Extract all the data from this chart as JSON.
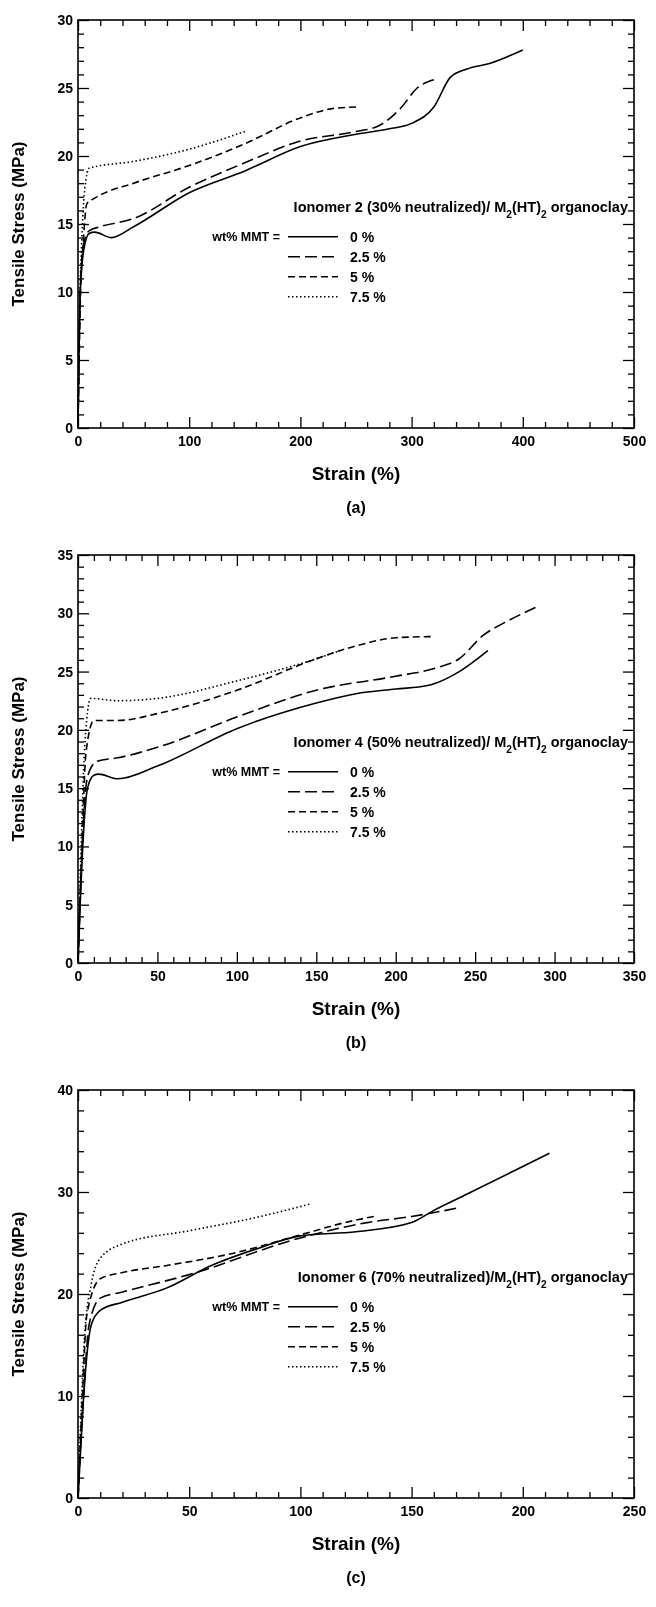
{
  "chart_data": [
    {
      "type": "line",
      "title": "(a)",
      "xlabel": "Strain (%)",
      "ylabel": "Tensile Stress (MPa)",
      "legend_title": "Ionomer 2 (30% neutralized)/ M$_{2}$(HT)$_{2}$ organoclay",
      "annotations": [
        "wt% MMT ="
      ],
      "legend": "center right",
      "xlim": [
        0,
        500
      ],
      "ylim": [
        0,
        30
      ],
      "xticks": [
        0,
        {
          "value": 20,
          "label": null
        },
        {
          "value": 40,
          "label": null
        },
        {
          "value": 60,
          "label": null
        },
        {
          "value": 80,
          "label": null
        },
        100,
        {
          "value": 120,
          "label": null
        },
        {
          "value": 140,
          "label": null
        },
        {
          "value": 160,
          "label": null
        },
        {
          "value": 180,
          "label": null
        },
        200,
        {
          "value": 220,
          "label": null
        },
        {
          "value": 240,
          "label": null
        },
        {
          "value": 260,
          "label": null
        },
        {
          "value": 280,
          "label": null
        },
        300,
        {
          "value": 320,
          "label": null
        },
        {
          "value": 340,
          "label": null
        },
        {
          "value": 360,
          "label": null
        },
        {
          "value": 380,
          "label": null
        },
        400,
        {
          "value": 420,
          "label": null
        },
        {
          "value": 440,
          "label": null
        },
        {
          "value": 460,
          "label": null
        },
        {
          "value": 480,
          "label": null
        },
        500
      ],
      "yticks": [
        0,
        {
          "value": 1,
          "label": null
        },
        {
          "value": 2,
          "label": null
        },
        {
          "value": 3,
          "label": null
        },
        {
          "value": 4,
          "label": null
        },
        5,
        {
          "value": 6,
          "label": null
        },
        {
          "value": 7,
          "label": null
        },
        {
          "value": 8,
          "label": null
        },
        {
          "value": 9,
          "label": null
        },
        10,
        {
          "value": 11,
          "label": null
        },
        {
          "value": 12,
          "label": null
        },
        {
          "value": 13,
          "label": null
        },
        {
          "value": 14,
          "label": null
        },
        15,
        {
          "value": 16,
          "label": null
        },
        {
          "value": 17,
          "label": null
        },
        {
          "value": 18,
          "label": null
        },
        {
          "value": 19,
          "label": null
        },
        20,
        {
          "value": 21,
          "label": null
        },
        {
          "value": 22,
          "label": null
        },
        {
          "value": 23,
          "label": null
        },
        {
          "value": 24,
          "label": null
        },
        25,
        {
          "value": 26,
          "label": null
        },
        {
          "value": 27,
          "label": null
        },
        {
          "value": 28,
          "label": null
        },
        {
          "value": 29,
          "label": null
        },
        30
      ],
      "series": [
        {
          "name": "0 %",
          "color": "#000000",
          "line_style": "solid",
          "x": [
            0,
            2,
            5,
            10,
            15,
            30,
            50,
            100,
            150,
            200,
            250,
            280,
            300,
            320,
            335,
            350,
            370,
            400
          ],
          "values": [
            0,
            10,
            13,
            14.3,
            14.4,
            14,
            14.8,
            17.3,
            18.9,
            20.7,
            21.6,
            22,
            22.4,
            23.6,
            25.8,
            26.4,
            26.8,
            27.8
          ]
        },
        {
          "name": "2.5 %",
          "color": "#000000",
          "line_style": "dashed",
          "x": [
            0,
            2,
            5,
            10,
            20,
            50,
            100,
            150,
            200,
            250,
            270,
            290,
            305,
            320
          ],
          "values": [
            0,
            10,
            13.5,
            14.5,
            14.8,
            15.4,
            17.7,
            19.5,
            21.1,
            21.8,
            22.2,
            23.5,
            25,
            25.6
          ]
        },
        {
          "name": "5 %",
          "color": "#000000",
          "line_style": "dashed",
          "x": [
            0,
            2,
            5,
            8,
            15,
            50,
            100,
            150,
            200,
            230,
            250
          ],
          "values": [
            0,
            9,
            14,
            16.5,
            16.9,
            18,
            19.3,
            20.9,
            22.8,
            23.5,
            23.6
          ]
        },
        {
          "name": "7.5 %",
          "color": "#000000",
          "line_style": "dotted",
          "x": [
            0,
            1.5,
            3,
            6,
            10,
            50,
            100,
            150
          ],
          "values": [
            0,
            9,
            13,
            17.5,
            19.1,
            19.6,
            20.5,
            21.8
          ]
        }
      ]
    },
    {
      "type": "line",
      "title": "(b)",
      "xlabel": "Strain (%)",
      "ylabel": "Tensile Stress (MPa)",
      "legend_title": "Ionomer 4 (50% neutralized)/ M$_{2}$(HT)$_{2}$ organoclay",
      "annotations": [
        "wt% MMT ="
      ],
      "legend": "center right",
      "xlim": [
        0,
        350
      ],
      "ylim": [
        0,
        35
      ],
      "xticks": [
        0,
        {
          "value": 10,
          "label": null
        },
        {
          "value": 20,
          "label": null
        },
        {
          "value": 30,
          "label": null
        },
        {
          "value": 40,
          "label": null
        },
        50,
        {
          "value": 60,
          "label": null
        },
        {
          "value": 70,
          "label": null
        },
        {
          "value": 80,
          "label": null
        },
        {
          "value": 90,
          "label": null
        },
        100,
        {
          "value": 110,
          "label": null
        },
        {
          "value": 120,
          "label": null
        },
        {
          "value": 130,
          "label": null
        },
        {
          "value": 140,
          "label": null
        },
        150,
        {
          "value": 160,
          "label": null
        },
        {
          "value": 170,
          "label": null
        },
        {
          "value": 180,
          "label": null
        },
        {
          "value": 190,
          "label": null
        },
        200,
        {
          "value": 210,
          "label": null
        },
        {
          "value": 220,
          "label": null
        },
        {
          "value": 230,
          "label": null
        },
        {
          "value": 240,
          "label": null
        },
        250,
        {
          "value": 260,
          "label": null
        },
        {
          "value": 270,
          "label": null
        },
        {
          "value": 280,
          "label": null
        },
        {
          "value": 290,
          "label": null
        },
        300,
        {
          "value": 310,
          "label": null
        },
        {
          "value": 320,
          "label": null
        },
        {
          "value": 330,
          "label": null
        },
        {
          "value": 340,
          "label": null
        },
        350
      ],
      "yticks": [
        0,
        {
          "value": 1,
          "label": null
        },
        {
          "value": 2,
          "label": null
        },
        {
          "value": 3,
          "label": null
        },
        {
          "value": 4,
          "label": null
        },
        5,
        {
          "value": 6,
          "label": null
        },
        {
          "value": 7,
          "label": null
        },
        {
          "value": 8,
          "label": null
        },
        {
          "value": 9,
          "label": null
        },
        10,
        {
          "value": 11,
          "label": null
        },
        {
          "value": 12,
          "label": null
        },
        {
          "value": 13,
          "label": null
        },
        {
          "value": 14,
          "label": null
        },
        15,
        {
          "value": 16,
          "label": null
        },
        {
          "value": 17,
          "label": null
        },
        {
          "value": 18,
          "label": null
        },
        {
          "value": 19,
          "label": null
        },
        20,
        {
          "value": 21,
          "label": null
        },
        {
          "value": 22,
          "label": null
        },
        {
          "value": 23,
          "label": null
        },
        {
          "value": 24,
          "label": null
        },
        25,
        {
          "value": 26,
          "label": null
        },
        {
          "value": 27,
          "label": null
        },
        {
          "value": 28,
          "label": null
        },
        {
          "value": 29,
          "label": null
        },
        30,
        {
          "value": 31,
          "label": null
        },
        {
          "value": 32,
          "label": null
        },
        {
          "value": 33,
          "label": null
        },
        {
          "value": 34,
          "label": null
        },
        35
      ],
      "series": [
        {
          "name": "0 %",
          "color": "#000000",
          "line_style": "solid",
          "x": [
            0,
            3,
            6,
            10,
            13,
            25,
            50,
            100,
            150,
            175,
            200,
            220,
            225,
            240,
            258
          ],
          "values": [
            0,
            10,
            15,
            16.1,
            16.2,
            15.8,
            16.9,
            20.1,
            22.3,
            23.1,
            23.5,
            23.8,
            24,
            25,
            26.8
          ]
        },
        {
          "name": "2.5 %",
          "color": "#000000",
          "line_style": "dashed",
          "x": [
            0,
            3,
            6,
            12,
            25,
            50,
            100,
            150,
            200,
            225,
            240,
            255,
            270,
            288
          ],
          "values": [
            0,
            11,
            16,
            17.3,
            17.6,
            18.5,
            21.1,
            23.4,
            24.6,
            25.3,
            26.1,
            28.1,
            29.3,
            30.5
          ]
        },
        {
          "name": "5 %",
          "color": "#000000",
          "line_style": "dashed",
          "x": [
            0,
            2.5,
            5,
            10,
            25,
            50,
            100,
            150,
            175,
            200,
            222
          ],
          "values": [
            0,
            10,
            18,
            20.8,
            20.8,
            21.4,
            23.4,
            26.1,
            27.2,
            27.9,
            28
          ]
        },
        {
          "name": "7.5 %",
          "color": "#000000",
          "line_style": "dotted",
          "x": [
            0,
            2,
            4,
            8,
            25,
            50,
            100,
            150,
            163
          ],
          "values": [
            0,
            10,
            18,
            22.7,
            22.5,
            22.7,
            24.2,
            26.1,
            26.7
          ]
        }
      ]
    },
    {
      "type": "line",
      "title": "(c)",
      "xlabel": "Strain (%)",
      "ylabel": "Tensile Stress (MPa)",
      "legend_title": "Ionomer 6 (70% neutralized)/M$_{2}$(HT)$_{2}$ organoclay",
      "annotations": [
        "wt% MMT ="
      ],
      "legend": "center right",
      "xlim": [
        0,
        250
      ],
      "ylim": [
        0,
        40
      ],
      "xticks": [
        0,
        {
          "value": 10,
          "label": null
        },
        {
          "value": 20,
          "label": null
        },
        {
          "value": 30,
          "label": null
        },
        {
          "value": 40,
          "label": null
        },
        50,
        {
          "value": 60,
          "label": null
        },
        {
          "value": 70,
          "label": null
        },
        {
          "value": 80,
          "label": null
        },
        {
          "value": 90,
          "label": null
        },
        100,
        {
          "value": 110,
          "label": null
        },
        {
          "value": 120,
          "label": null
        },
        {
          "value": 130,
          "label": null
        },
        {
          "value": 140,
          "label": null
        },
        150,
        {
          "value": 160,
          "label": null
        },
        {
          "value": 170,
          "label": null
        },
        {
          "value": 180,
          "label": null
        },
        {
          "value": 190,
          "label": null
        },
        200,
        {
          "value": 210,
          "label": null
        },
        {
          "value": 220,
          "label": null
        },
        {
          "value": 230,
          "label": null
        },
        {
          "value": 240,
          "label": null
        },
        250
      ],
      "yticks": [
        0,
        {
          "value": 2,
          "label": null
        },
        {
          "value": 4,
          "label": null
        },
        {
          "value": 6,
          "label": null
        },
        {
          "value": 8,
          "label": null
        },
        10,
        {
          "value": 12,
          "label": null
        },
        {
          "value": 14,
          "label": null
        },
        {
          "value": 16,
          "label": null
        },
        {
          "value": 18,
          "label": null
        },
        20,
        {
          "value": 22,
          "label": null
        },
        {
          "value": 24,
          "label": null
        },
        {
          "value": 26,
          "label": null
        },
        {
          "value": 28,
          "label": null
        },
        30,
        {
          "value": 32,
          "label": null
        },
        {
          "value": 34,
          "label": null
        },
        {
          "value": 36,
          "label": null
        },
        {
          "value": 38,
          "label": null
        },
        40
      ],
      "series": [
        {
          "name": "0 %",
          "color": "#000000",
          "line_style": "solid",
          "x": [
            0,
            2,
            4,
            6,
            10,
            20,
            40,
            60,
            80,
            100,
            125,
            150,
            160,
            175,
            200,
            212
          ],
          "values": [
            0,
            8,
            14,
            17,
            18.4,
            19.2,
            20.6,
            22.8,
            24.4,
            25.7,
            26.1,
            27,
            28.2,
            29.8,
            32.5,
            33.8
          ]
        },
        {
          "name": "2.5 %",
          "color": "#000000",
          "line_style": "dashed",
          "x": [
            0,
            2.5,
            5,
            10,
            20,
            50,
            100,
            130,
            150,
            170
          ],
          "values": [
            0,
            10,
            17,
            19.6,
            20.2,
            21.9,
            25.5,
            27,
            27.6,
            28.4
          ]
        },
        {
          "name": "5 %",
          "color": "#000000",
          "line_style": "dashed",
          "x": [
            0,
            2,
            4,
            10,
            20,
            40,
            70,
            100,
            120,
            133
          ],
          "values": [
            0,
            10,
            18,
            21.5,
            22.1,
            22.8,
            24,
            25.8,
            27,
            27.6
          ]
        },
        {
          "name": "7.5 %",
          "color": "#000000",
          "line_style": "dotted",
          "x": [
            0,
            1.5,
            3,
            6,
            10,
            20,
            50,
            80,
            104
          ],
          "values": [
            0,
            9,
            16,
            21,
            23.5,
            24.9,
            26.2,
            27.5,
            28.8
          ]
        }
      ]
    }
  ]
}
